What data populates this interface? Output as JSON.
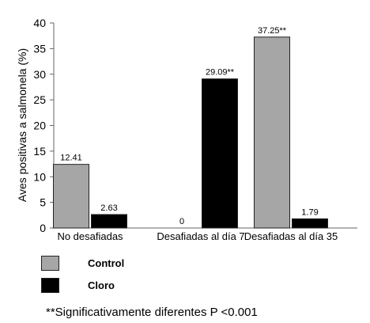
{
  "chart_data": {
    "type": "bar",
    "categories": [
      "No desafiadas",
      "Desafiadas al día 7",
      "Desafiadas al día 35"
    ],
    "series": [
      {
        "name": "Control",
        "values": [
          12.41,
          0,
          37.25
        ],
        "labels": [
          "12.41",
          "0",
          "37.25**"
        ],
        "color": "#a6a6a6"
      },
      {
        "name": "Cloro",
        "values": [
          2.63,
          29.09,
          1.79
        ],
        "labels": [
          "2.63",
          "29.09**",
          "1.79"
        ],
        "color": "#000000"
      }
    ],
    "ylabel": "Aves positivas a salmonela (%)",
    "xlabel": "",
    "ylim": [
      0,
      40
    ],
    "yticks": [
      "0",
      "5",
      "10",
      "15",
      "20",
      "25",
      "30",
      "35",
      "40"
    ],
    "grid": false,
    "legend_position": "bottom-left"
  },
  "footnote": "**Significativamente diferentes P <0.001"
}
